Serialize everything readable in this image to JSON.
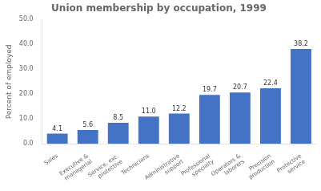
{
  "chart_data": {
    "type": "bar",
    "title": "Union membership by occupation, 1999",
    "categories": [
      "Sales",
      "Executive &\nmanagerial",
      "Service, exc.\nprotective",
      "Technicians",
      "Administrative\nsupport",
      "Professional\nspecialty",
      "Operators &\nlaborers",
      "Precision\nproduction",
      "Protective\nservice"
    ],
    "values": [
      4.1,
      5.6,
      8.5,
      11.0,
      12.2,
      19.7,
      20.7,
      22.4,
      38.2
    ],
    "value_labels": [
      "4.1",
      "5.6",
      "8.5",
      "11.0",
      "12.2",
      "19.7",
      "20.7",
      "22.4",
      "38.2"
    ],
    "data_labels": true,
    "color": "#4472c4",
    "ylabel": "Percent of employed",
    "ylim": [
      0,
      50
    ],
    "yticks": [
      {
        "value": 0,
        "label": "0.0"
      },
      {
        "value": 10,
        "label": "10.0"
      },
      {
        "value": 20,
        "label": "20.0"
      },
      {
        "value": 30,
        "label": "30.0"
      },
      {
        "value": 40,
        "label": "40.0"
      },
      {
        "value": 50,
        "label": "50.0"
      }
    ],
    "grid": false
  }
}
